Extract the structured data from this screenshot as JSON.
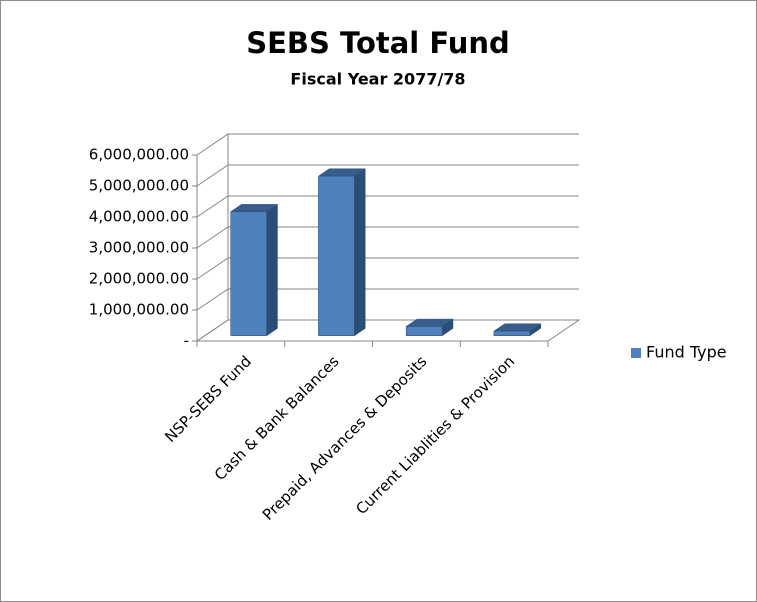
{
  "chart_data": {
    "type": "bar3d",
    "title": "SEBS Total Fund",
    "subtitle": "Fiscal Year 2077/78",
    "categories": [
      "NSP-SEBS Fund",
      "Cash & Bank Balances",
      "Prepaid, Advances & Deposits",
      "Current Liablities & Provision"
    ],
    "series": [
      {
        "name": "Fund Type",
        "color": "#4f81bd",
        "values": [
          4000000,
          5150000,
          300000,
          150000
        ]
      }
    ],
    "ylim": [
      0,
      6000000
    ],
    "yticks": [
      {
        "value": 0,
        "label": "-"
      },
      {
        "value": 1000000,
        "label": "1,000,000.00"
      },
      {
        "value": 2000000,
        "label": "2,000,000.00"
      },
      {
        "value": 3000000,
        "label": "3,000,000.00"
      },
      {
        "value": 4000000,
        "label": "4,000,000.00"
      },
      {
        "value": 5000000,
        "label": "5,000,000.00"
      },
      {
        "value": 6000000,
        "label": "6,000,000.00"
      }
    ],
    "grid": true,
    "legend": "right"
  }
}
